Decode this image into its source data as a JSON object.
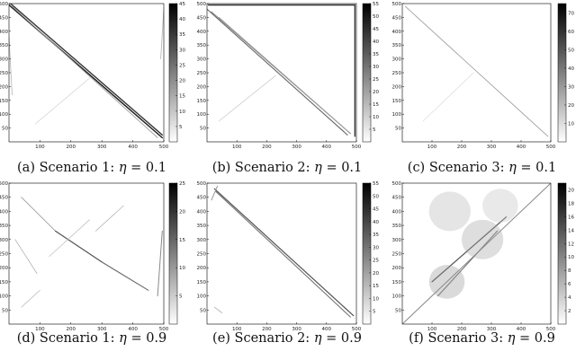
{
  "chart_data": [
    {
      "type": "heatmap",
      "caption": "(a) Scenario 1: η = 0.1",
      "caption_parts": {
        "prefix": "(a) Scenario 1: ",
        "symbol": "η",
        "suffix": " = 0.1"
      },
      "x_ticks": [
        "100",
        "200",
        "300",
        "400",
        "500"
      ],
      "y_ticks": [
        "50",
        "100",
        "150",
        "200",
        "250",
        "300",
        "350",
        "400",
        "450",
        "500"
      ],
      "xlim": [
        0,
        500
      ],
      "ylim": [
        0,
        500
      ],
      "colorbar_ticks": [
        "5",
        "10",
        "15",
        "20",
        "25",
        "30",
        "35",
        "40",
        "45"
      ],
      "colorbar_range": [
        0,
        45
      ],
      "features": [
        {
          "kind": "line",
          "from": [
            0,
            495
          ],
          "to": [
            495,
            15
          ],
          "intensity": 0.95
        },
        {
          "kind": "line",
          "from": [
            5,
            500
          ],
          "to": [
            495,
            25
          ],
          "intensity": 0.85
        },
        {
          "kind": "line",
          "from": [
            10,
            490
          ],
          "to": [
            480,
            15
          ],
          "intensity": 0.35
        },
        {
          "kind": "line",
          "from": [
            85,
            65
          ],
          "to": [
            260,
            230
          ],
          "intensity": 0.12
        },
        {
          "kind": "line",
          "from": [
            0,
            380
          ],
          "to": [
            10,
            170
          ],
          "intensity": 0.25
        },
        {
          "kind": "line",
          "from": [
            490,
            300
          ],
          "to": [
            500,
            480
          ],
          "intensity": 0.25
        }
      ]
    },
    {
      "type": "heatmap",
      "caption": "(b) Scenario 2: η = 0.1",
      "caption_parts": {
        "prefix": "(b) Scenario 2: ",
        "symbol": "η",
        "suffix": " = 0.1"
      },
      "x_ticks": [
        "100",
        "200",
        "300",
        "400",
        "500"
      ],
      "y_ticks": [
        "50",
        "100",
        "150",
        "200",
        "250",
        "300",
        "350",
        "400",
        "450",
        "500"
      ],
      "xlim": [
        0,
        500
      ],
      "ylim": [
        0,
        500
      ],
      "colorbar_ticks": [
        "5",
        "10",
        "15",
        "20",
        "25",
        "30",
        "35",
        "40",
        "45",
        "50",
        "55"
      ],
      "colorbar_range": [
        0,
        55
      ],
      "features": [
        {
          "kind": "line",
          "from": [
            5,
            495
          ],
          "to": [
            495,
            495
          ],
          "intensity": 0.9
        },
        {
          "kind": "line",
          "from": [
            495,
            495
          ],
          "to": [
            495,
            20
          ],
          "intensity": 0.85
        },
        {
          "kind": "line",
          "from": [
            0,
            480
          ],
          "to": [
            470,
            25
          ],
          "intensity": 0.6
        },
        {
          "kind": "line",
          "from": [
            15,
            470
          ],
          "to": [
            480,
            30
          ],
          "intensity": 0.5
        },
        {
          "kind": "line",
          "from": [
            40,
            450
          ],
          "to": [
            470,
            40
          ],
          "intensity": 0.35
        },
        {
          "kind": "line",
          "from": [
            40,
            75
          ],
          "to": [
            230,
            240
          ],
          "intensity": 0.15
        }
      ]
    },
    {
      "type": "heatmap",
      "caption": "(c) Scenario 3: η = 0.1",
      "caption_parts": {
        "prefix": "(c) Scenario 3: ",
        "symbol": "η",
        "suffix": " = 0.1"
      },
      "x_ticks": [
        "100",
        "200",
        "300",
        "400",
        "500"
      ],
      "y_ticks": [
        "50",
        "100",
        "150",
        "200",
        "250",
        "300",
        "350",
        "400",
        "450",
        "500"
      ],
      "xlim": [
        0,
        500
      ],
      "ylim": [
        0,
        500
      ],
      "colorbar_ticks": [
        "10",
        "20",
        "30",
        "40",
        "50",
        "60",
        "70"
      ],
      "colorbar_range": [
        0,
        75
      ],
      "features": [
        {
          "kind": "line",
          "from": [
            10,
            490
          ],
          "to": [
            490,
            20
          ],
          "intensity": 0.35
        },
        {
          "kind": "line",
          "from": [
            70,
            75
          ],
          "to": [
            240,
            250
          ],
          "intensity": 0.08
        }
      ]
    },
    {
      "type": "heatmap",
      "caption": "(d) Scenario 1: η = 0.9",
      "caption_parts": {
        "prefix": "(d) Scenario 1: ",
        "symbol": "η",
        "suffix": " = 0.9"
      },
      "x_ticks": [
        "100",
        "200",
        "300",
        "400",
        "500"
      ],
      "y_ticks": [
        "50",
        "100",
        "150",
        "200",
        "250",
        "300",
        "350",
        "400",
        "450",
        "500"
      ],
      "xlim": [
        0,
        500
      ],
      "ylim": [
        0,
        500
      ],
      "colorbar_ticks": [
        "5",
        "10",
        "15",
        "20",
        "25"
      ],
      "colorbar_range": [
        0,
        25
      ],
      "features": [
        {
          "kind": "line",
          "from": [
            40,
            450
          ],
          "to": [
            150,
            330
          ],
          "intensity": 0.35
        },
        {
          "kind": "line",
          "from": [
            150,
            330
          ],
          "to": [
            300,
            220
          ],
          "intensity": 0.7
        },
        {
          "kind": "line",
          "from": [
            300,
            220
          ],
          "to": [
            450,
            120
          ],
          "intensity": 0.6
        },
        {
          "kind": "line",
          "from": [
            130,
            240
          ],
          "to": [
            260,
            370
          ],
          "intensity": 0.2
        },
        {
          "kind": "line",
          "from": [
            20,
            300
          ],
          "to": [
            90,
            180
          ],
          "intensity": 0.25
        },
        {
          "kind": "line",
          "from": [
            40,
            60
          ],
          "to": [
            100,
            120
          ],
          "intensity": 0.2
        },
        {
          "kind": "line",
          "from": [
            280,
            330
          ],
          "to": [
            370,
            420
          ],
          "intensity": 0.25
        },
        {
          "kind": "line",
          "from": [
            480,
            100
          ],
          "to": [
            495,
            330
          ],
          "intensity": 0.45
        }
      ]
    },
    {
      "type": "heatmap",
      "caption": "(e) Scenario 2: η = 0.9",
      "caption_parts": {
        "prefix": "(e) Scenario 2: ",
        "symbol": "η",
        "suffix": " = 0.9"
      },
      "x_ticks": [
        "100",
        "200",
        "300",
        "400",
        "500"
      ],
      "y_ticks": [
        "50",
        "100",
        "150",
        "200",
        "250",
        "300",
        "350",
        "400",
        "450",
        "500"
      ],
      "xlim": [
        0,
        500
      ],
      "ylim": [
        0,
        500
      ],
      "colorbar_ticks": [
        "5",
        "10",
        "15",
        "20",
        "25",
        "30",
        "35",
        "40",
        "45",
        "50",
        "55"
      ],
      "colorbar_range": [
        0,
        55
      ],
      "features": [
        {
          "kind": "line",
          "from": [
            25,
            480
          ],
          "to": [
            490,
            30
          ],
          "intensity": 0.7
        },
        {
          "kind": "line",
          "from": [
            30,
            470
          ],
          "to": [
            480,
            25
          ],
          "intensity": 0.55
        },
        {
          "kind": "line",
          "from": [
            15,
            440
          ],
          "to": [
            35,
            490
          ],
          "intensity": 0.4
        },
        {
          "kind": "line",
          "from": [
            25,
            60
          ],
          "to": [
            50,
            40
          ],
          "intensity": 0.3
        }
      ]
    },
    {
      "type": "heatmap",
      "caption": "(f) Scenario 3: η = 0.9",
      "caption_parts": {
        "prefix": "(f) Scenario 3: ",
        "symbol": "η",
        "suffix": " = 0.9"
      },
      "x_ticks": [
        "100",
        "200",
        "300",
        "400",
        "500"
      ],
      "y_ticks": [
        "50",
        "100",
        "150",
        "200",
        "250",
        "300",
        "350",
        "400",
        "450",
        "500"
      ],
      "xlim": [
        0,
        500
      ],
      "ylim": [
        0,
        500
      ],
      "colorbar_ticks": [
        "2",
        "4",
        "6",
        "8",
        "10",
        "12",
        "14",
        "16",
        "18",
        "20"
      ],
      "colorbar_range": [
        0,
        21
      ],
      "features": [
        {
          "kind": "line",
          "from": [
            0,
            0
          ],
          "to": [
            500,
            500
          ],
          "intensity": 0.45
        },
        {
          "kind": "line",
          "from": [
            100,
            150
          ],
          "to": [
            350,
            380
          ],
          "intensity": 0.7
        },
        {
          "kind": "line",
          "from": [
            120,
            100
          ],
          "to": [
            320,
            330
          ],
          "intensity": 0.55
        },
        {
          "kind": "blob",
          "center": [
            150,
            150
          ],
          "radius": 60,
          "intensity": 0.4
        },
        {
          "kind": "blob",
          "center": [
            270,
            300
          ],
          "radius": 70,
          "intensity": 0.35
        },
        {
          "kind": "blob",
          "center": [
            160,
            400
          ],
          "radius": 70,
          "intensity": 0.25
        },
        {
          "kind": "blob",
          "center": [
            330,
            420
          ],
          "radius": 60,
          "intensity": 0.2
        }
      ]
    }
  ]
}
